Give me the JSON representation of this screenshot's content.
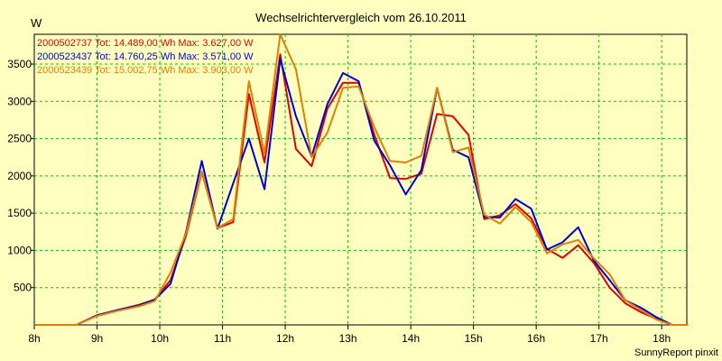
{
  "chart_data": {
    "type": "line",
    "title": "Wechselrichtervergleich vom 26.10.2011",
    "y_unit": "W",
    "footer": "SunnyReport pinxit",
    "xlim": [
      8.0,
      18.4
    ],
    "ylim": [
      0,
      3900
    ],
    "x_ticks": [
      {
        "value": 8,
        "label": "8h"
      },
      {
        "value": 9,
        "label": "9h"
      },
      {
        "value": 10,
        "label": "10h"
      },
      {
        "value": 11,
        "label": "11h"
      },
      {
        "value": 12,
        "label": "12h"
      },
      {
        "value": 13,
        "label": "13h"
      },
      {
        "value": 14,
        "label": "14h"
      },
      {
        "value": 15,
        "label": "15h"
      },
      {
        "value": 16,
        "label": "16h"
      },
      {
        "value": 17,
        "label": "17h"
      },
      {
        "value": 18,
        "label": "18h"
      }
    ],
    "y_ticks": [
      {
        "value": 500,
        "label": "500"
      },
      {
        "value": 1000,
        "label": "1000"
      },
      {
        "value": 1500,
        "label": "1500"
      },
      {
        "value": 2000,
        "label": "2000"
      },
      {
        "value": 2500,
        "label": "2500"
      },
      {
        "value": 3000,
        "label": "3000"
      },
      {
        "value": 3500,
        "label": "3500"
      }
    ],
    "grid": true,
    "legend_position": "top-left",
    "series": [
      {
        "name": "2000502737 Tot: 14.489,00 Wh Max: 3.627,00 W",
        "color": "#e00000",
        "points": [
          [
            8.0,
            0
          ],
          [
            8.67,
            0
          ],
          [
            9.0,
            130
          ],
          [
            9.33,
            200
          ],
          [
            9.67,
            270
          ],
          [
            9.92,
            340
          ],
          [
            10.17,
            600
          ],
          [
            10.42,
            1200
          ],
          [
            10.67,
            2050
          ],
          [
            10.92,
            1300
          ],
          [
            11.17,
            1380
          ],
          [
            11.42,
            3100
          ],
          [
            11.67,
            2180
          ],
          [
            11.92,
            3630
          ],
          [
            12.17,
            2360
          ],
          [
            12.42,
            2130
          ],
          [
            12.67,
            2900
          ],
          [
            12.92,
            3250
          ],
          [
            13.17,
            3250
          ],
          [
            13.42,
            2550
          ],
          [
            13.67,
            1970
          ],
          [
            13.92,
            1960
          ],
          [
            14.17,
            2030
          ],
          [
            14.42,
            2830
          ],
          [
            14.67,
            2800
          ],
          [
            14.92,
            2550
          ],
          [
            15.17,
            1420
          ],
          [
            15.42,
            1470
          ],
          [
            15.67,
            1620
          ],
          [
            15.92,
            1430
          ],
          [
            16.17,
            1020
          ],
          [
            16.42,
            900
          ],
          [
            16.67,
            1070
          ],
          [
            16.92,
            830
          ],
          [
            17.17,
            500
          ],
          [
            17.42,
            290
          ],
          [
            17.67,
            170
          ],
          [
            17.92,
            80
          ],
          [
            18.17,
            0
          ],
          [
            18.42,
            0
          ]
        ]
      },
      {
        "name": "2000523437 Tot: 14.760,25 Wh Max: 3.571,00 W",
        "color": "#0000d0",
        "points": [
          [
            8.0,
            0
          ],
          [
            8.67,
            0
          ],
          [
            9.0,
            130
          ],
          [
            9.33,
            200
          ],
          [
            9.67,
            260
          ],
          [
            9.92,
            340
          ],
          [
            10.17,
            550
          ],
          [
            10.42,
            1250
          ],
          [
            10.67,
            2200
          ],
          [
            10.92,
            1290
          ],
          [
            11.17,
            1900
          ],
          [
            11.42,
            2500
          ],
          [
            11.67,
            1820
          ],
          [
            11.92,
            3570
          ],
          [
            12.17,
            2800
          ],
          [
            12.42,
            2260
          ],
          [
            12.67,
            2960
          ],
          [
            12.92,
            3380
          ],
          [
            13.17,
            3270
          ],
          [
            13.42,
            2470
          ],
          [
            13.67,
            2140
          ],
          [
            13.92,
            1750
          ],
          [
            14.17,
            2080
          ],
          [
            14.42,
            3180
          ],
          [
            14.67,
            2350
          ],
          [
            14.92,
            2250
          ],
          [
            15.17,
            1450
          ],
          [
            15.42,
            1440
          ],
          [
            15.67,
            1690
          ],
          [
            15.92,
            1560
          ],
          [
            16.17,
            1010
          ],
          [
            16.42,
            1110
          ],
          [
            16.67,
            1310
          ],
          [
            16.92,
            860
          ],
          [
            17.17,
            600
          ],
          [
            17.42,
            330
          ],
          [
            17.67,
            230
          ],
          [
            17.92,
            100
          ],
          [
            18.17,
            0
          ],
          [
            18.42,
            0
          ]
        ]
      },
      {
        "name": "2000523439 Tot: 15.002,75 Wh Max: 3.903,00 W",
        "color": "#e08000",
        "points": [
          [
            8.0,
            0
          ],
          [
            8.67,
            0
          ],
          [
            9.0,
            120
          ],
          [
            9.33,
            190
          ],
          [
            9.67,
            250
          ],
          [
            9.92,
            320
          ],
          [
            10.17,
            700
          ],
          [
            10.42,
            1230
          ],
          [
            10.67,
            2060
          ],
          [
            10.92,
            1300
          ],
          [
            11.17,
            1420
          ],
          [
            11.42,
            3270
          ],
          [
            11.67,
            2300
          ],
          [
            11.92,
            3900
          ],
          [
            12.17,
            3430
          ],
          [
            12.42,
            2250
          ],
          [
            12.67,
            2580
          ],
          [
            12.92,
            3180
          ],
          [
            13.17,
            3200
          ],
          [
            13.42,
            2650
          ],
          [
            13.67,
            2200
          ],
          [
            13.92,
            2180
          ],
          [
            14.17,
            2270
          ],
          [
            14.42,
            3180
          ],
          [
            14.67,
            2320
          ],
          [
            14.92,
            2380
          ],
          [
            15.17,
            1480
          ],
          [
            15.42,
            1360
          ],
          [
            15.67,
            1580
          ],
          [
            15.92,
            1380
          ],
          [
            16.17,
            960
          ],
          [
            16.42,
            1080
          ],
          [
            16.67,
            1140
          ],
          [
            16.92,
            890
          ],
          [
            17.17,
            680
          ],
          [
            17.42,
            330
          ],
          [
            17.67,
            200
          ],
          [
            17.92,
            70
          ],
          [
            18.17,
            0
          ],
          [
            18.42,
            0
          ]
        ]
      }
    ]
  }
}
